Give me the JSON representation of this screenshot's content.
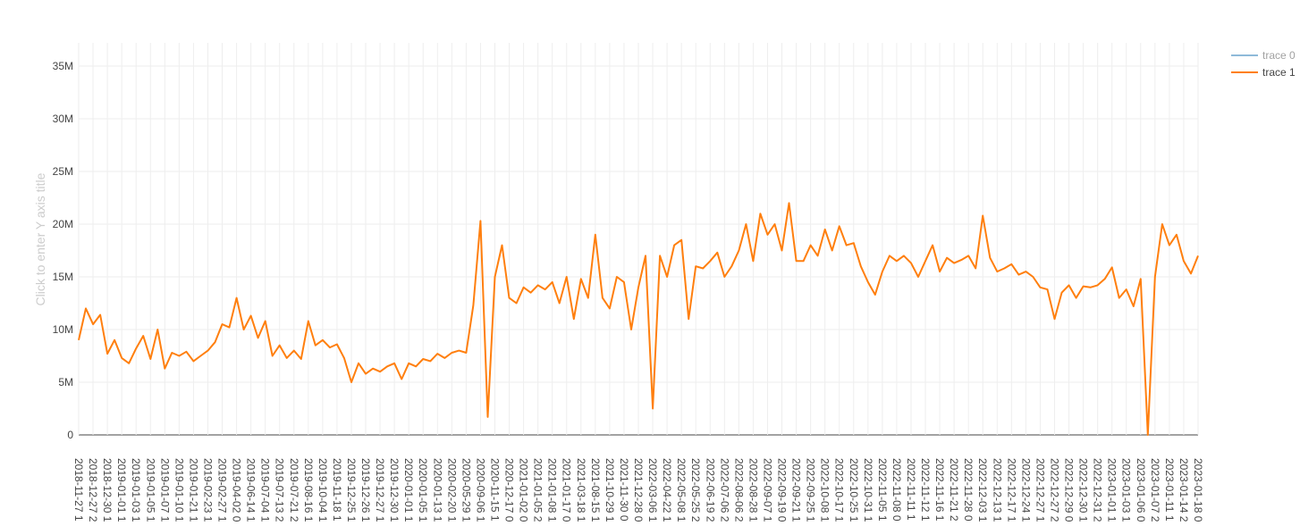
{
  "chart_data": {
    "type": "line",
    "y_title": "Click to enter Y axis title",
    "categories": [
      "2018-11-27 1",
      null,
      "2018-12-27 2",
      null,
      "2018-12-30 1",
      null,
      "2019-01-01 1",
      null,
      "2019-01-03 1",
      null,
      "2019-01-05 1",
      null,
      "2019-01-07 1",
      null,
      "2019-01-10 1",
      null,
      "2019-01-21 1",
      null,
      "2019-02-23 1",
      null,
      "2019-02-27 1",
      null,
      "2019-04-02 0",
      null,
      "2019-06-14 1",
      null,
      "2019-07-04 1",
      null,
      "2019-07-13 2",
      null,
      "2019-07-21 2",
      null,
      "2019-08-16 1",
      null,
      "2019-10-04 1",
      null,
      "2019-11-18 1",
      null,
      "2019-12-25 1",
      null,
      "2019-12-26 1",
      null,
      "2019-12-27 1",
      null,
      "2019-12-30 1",
      null,
      "2020-01-01 1",
      null,
      "2020-01-05 1",
      null,
      "2020-01-13 1",
      null,
      "2020-02-20 1",
      null,
      "2020-05-29 1",
      null,
      "2020-09-06 1",
      null,
      "2020-11-15 1",
      null,
      "2020-12-17 0",
      null,
      "2021-01-02 0",
      null,
      "2021-01-05 2",
      null,
      "2021-01-08 1",
      null,
      "2021-01-17 0",
      null,
      "2021-03-18 1",
      null,
      "2021-08-15 1",
      null,
      "2021-10-29 1",
      null,
      "2021-11-30 0",
      null,
      "2021-12-28 0",
      null,
      "2022-03-06 1",
      null,
      "2022-04-22 1",
      null,
      "2022-05-08 1",
      null,
      "2022-05-25 2",
      null,
      "2022-06-19 2",
      null,
      "2022-07-06 2",
      null,
      "2022-08-06 2",
      null,
      "2022-08-28 1",
      null,
      "2022-09-07 1",
      null,
      "2022-09-19 0",
      null,
      "2022-09-21 1",
      null,
      "2022-09-25 1",
      null,
      "2022-10-08 1",
      null,
      "2022-10-17 1",
      null,
      "2022-10-25 1",
      null,
      "2022-10-31 1",
      null,
      "2022-11-05 1",
      null,
      "2022-11-08 0",
      null,
      "2022-11-11 1",
      null,
      "2022-11-12 1",
      null,
      "2022-11-16 1",
      null,
      "2022-11-21 2",
      null,
      "2022-11-28 0",
      null,
      "2022-12-03 1",
      null,
      "2022-12-13 1",
      null,
      "2022-12-17 1",
      null,
      "2022-12-24 1",
      null,
      "2022-12-27 1",
      null,
      "2022-12-27 2",
      null,
      "2022-12-29 0",
      null,
      "2022-12-30 1",
      null,
      "2022-12-31 2",
      null,
      "2023-01-01 1",
      null,
      "2023-01-03 1",
      null,
      "2023-01-06 0",
      null,
      "2023-01-07 2",
      null,
      "2023-01-11 1",
      null,
      "2023-01-14 2",
      null,
      "2023-01-18 0"
    ],
    "series": [
      {
        "name": "trace 0",
        "color": "#1f77b4",
        "visible": "legendonly"
      },
      {
        "name": "trace 1",
        "color": "#ff7f0e",
        "values": [
          9000000,
          12000000,
          10500000,
          11400000,
          7700000,
          9000000,
          7300000,
          6800000,
          8200000,
          9400000,
          7200000,
          10000000,
          6300000,
          7800000,
          7500000,
          7900000,
          7000000,
          7500000,
          8000000,
          8800000,
          10500000,
          10200000,
          13000000,
          10000000,
          11300000,
          9200000,
          10800000,
          7500000,
          8500000,
          7300000,
          8000000,
          7200000,
          10800000,
          8500000,
          9000000,
          8300000,
          8600000,
          7300000,
          5000000,
          6800000,
          5800000,
          6300000,
          6000000,
          6500000,
          6800000,
          5300000,
          6800000,
          6500000,
          7200000,
          7000000,
          7700000,
          7300000,
          7800000,
          8000000,
          7800000,
          12300000,
          20300000,
          1700000,
          15000000,
          18000000,
          13000000,
          12500000,
          14000000,
          13500000,
          14200000,
          13800000,
          14500000,
          12500000,
          15000000,
          11000000,
          14800000,
          13000000,
          19000000,
          13000000,
          12000000,
          15000000,
          14500000,
          10000000,
          14000000,
          17000000,
          2500000,
          17000000,
          15000000,
          18000000,
          18500000,
          11000000,
          16000000,
          15800000,
          16500000,
          17300000,
          15000000,
          16000000,
          17500000,
          20000000,
          16500000,
          21000000,
          19000000,
          20000000,
          17500000,
          22000000,
          16500000,
          16500000,
          18000000,
          17000000,
          19500000,
          17500000,
          19800000,
          18000000,
          18200000,
          16000000,
          14500000,
          13300000,
          15500000,
          17000000,
          16500000,
          17000000,
          16300000,
          15000000,
          16500000,
          18000000,
          15500000,
          16800000,
          16300000,
          16600000,
          17000000,
          15800000,
          20800000,
          16800000,
          15500000,
          15800000,
          16200000,
          15200000,
          15500000,
          15000000,
          14000000,
          13800000,
          11000000,
          13500000,
          14200000,
          13000000,
          14100000,
          14000000,
          14200000,
          14800000,
          15900000,
          13000000,
          13800000,
          12200000,
          14800000,
          0,
          15000000,
          20000000,
          18000000,
          19000000,
          16500000,
          15300000,
          17000000
        ]
      }
    ],
    "ylim": [
      0,
      37200000
    ],
    "yticks": [
      0,
      {
        "value": 5000000,
        "label": "5M"
      },
      {
        "value": 10000000,
        "label": "10M"
      },
      {
        "value": 15000000,
        "label": "15M"
      },
      {
        "value": 20000000,
        "label": "20M"
      },
      {
        "value": 25000000,
        "label": "25M"
      },
      {
        "value": 30000000,
        "label": "30M"
      },
      {
        "value": 35000000,
        "label": "35M"
      }
    ],
    "grid": true
  }
}
